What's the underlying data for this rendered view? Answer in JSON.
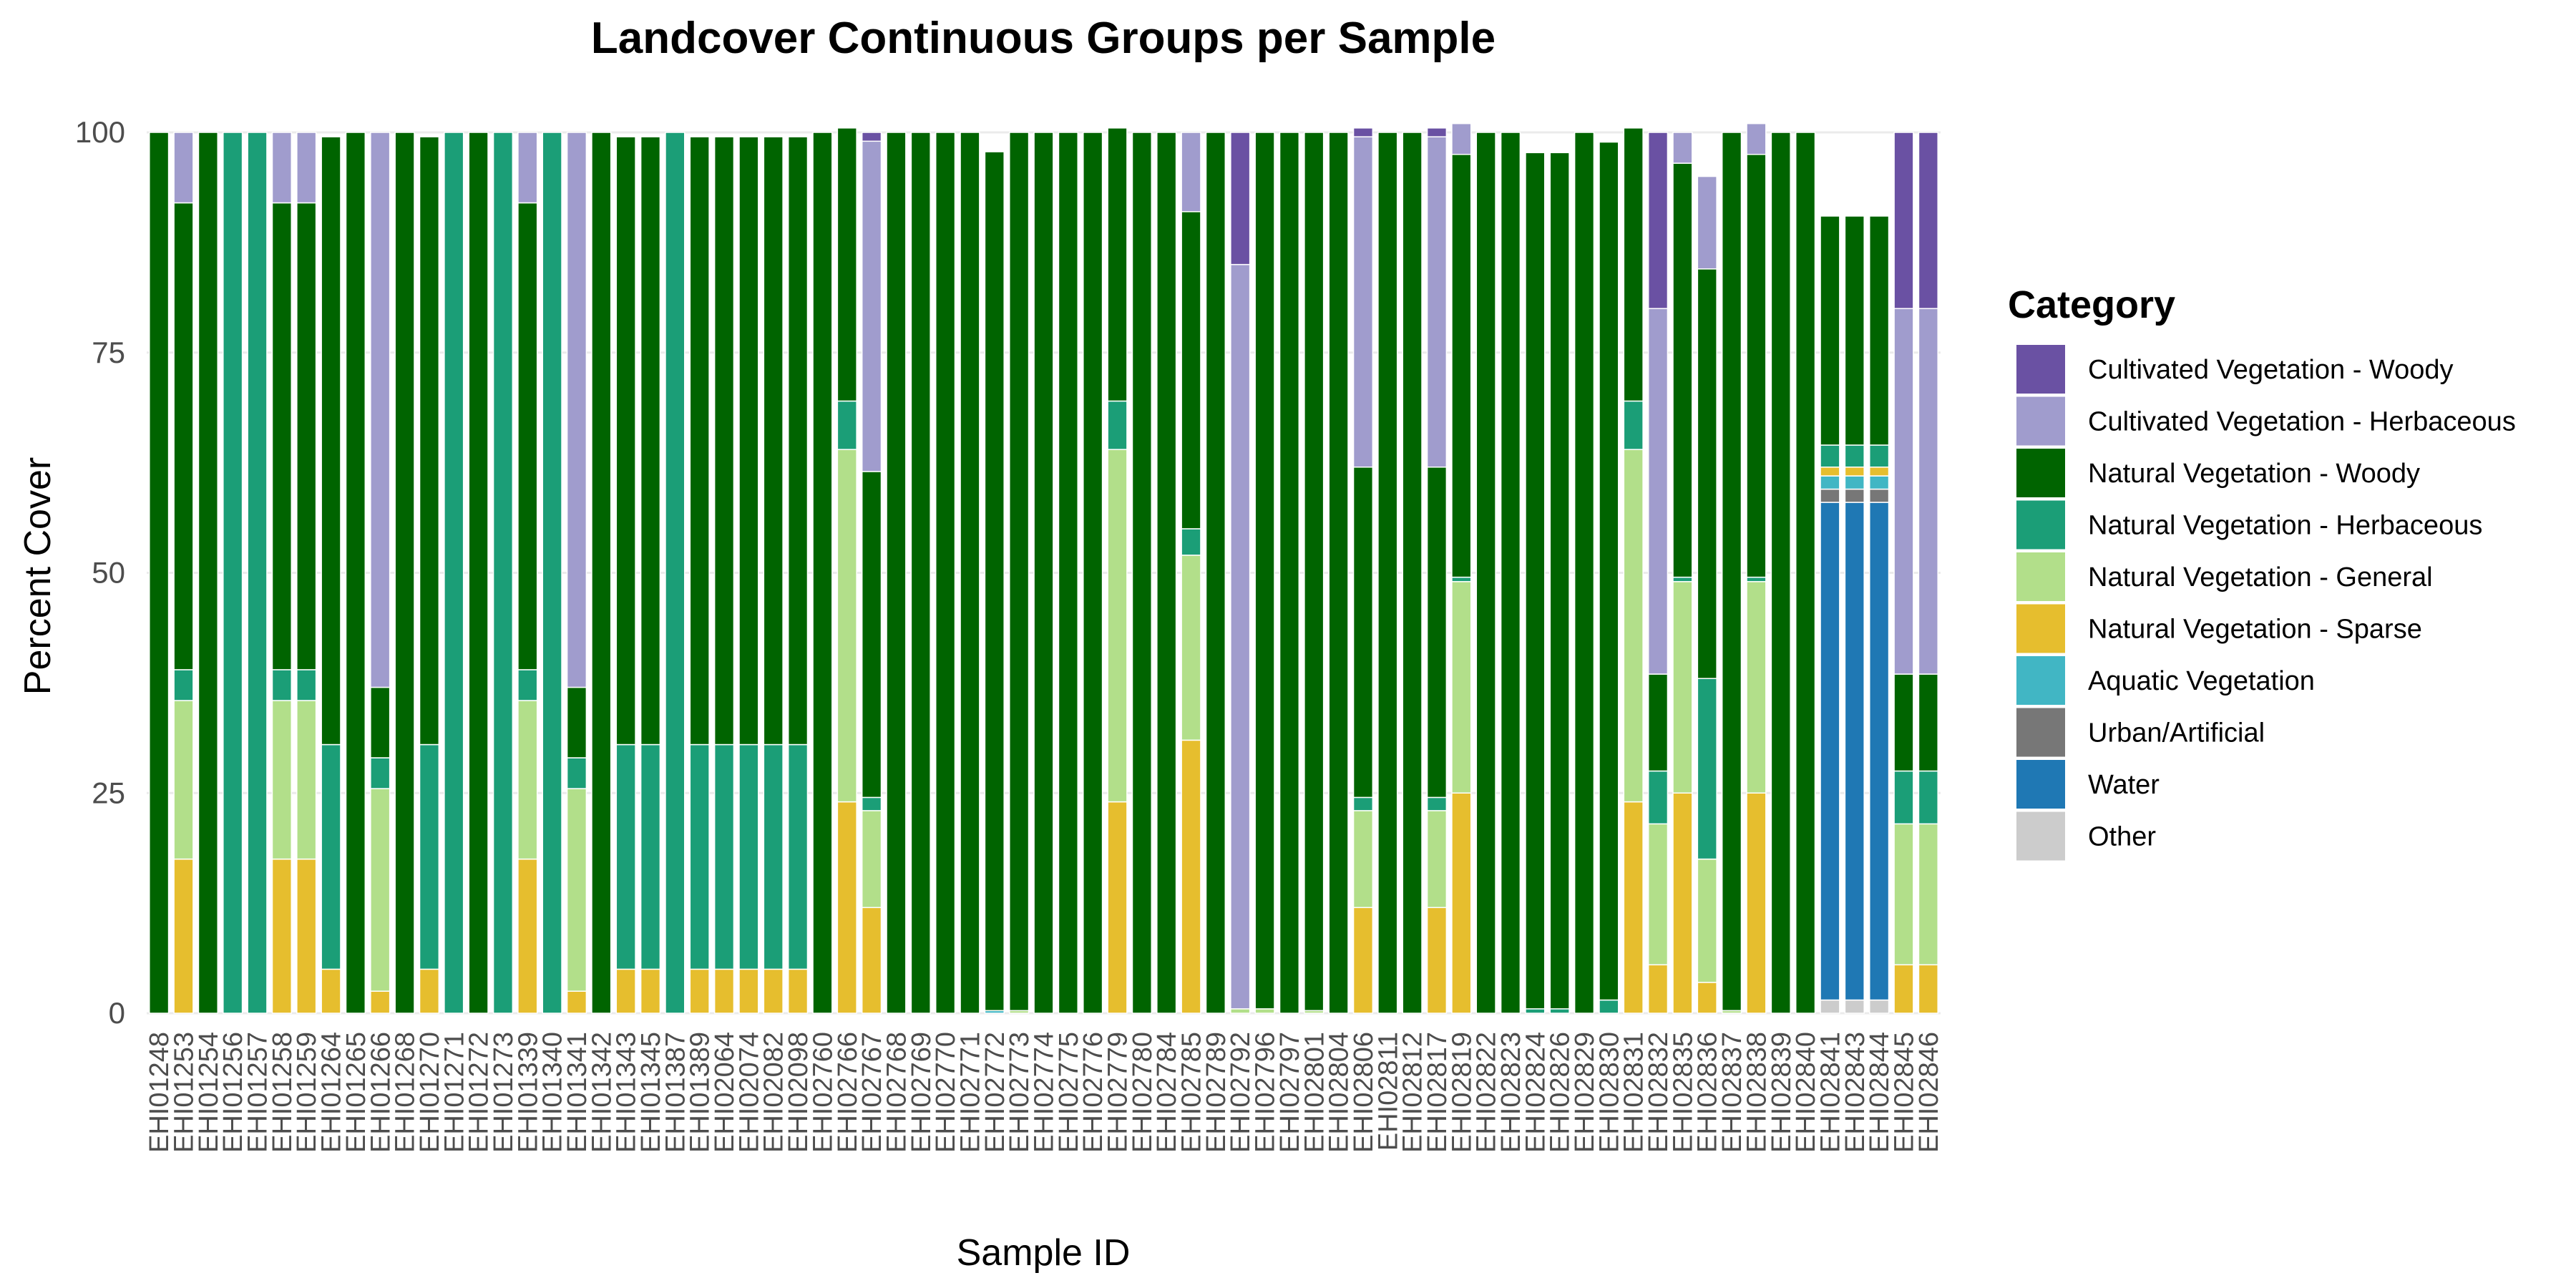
{
  "chart_data": {
    "type": "bar",
    "stacked": true,
    "title": "Landcover Continuous Groups per Sample",
    "xlabel": "Sample ID",
    "ylabel": "Percent Cover",
    "ylim": [
      0,
      100
    ],
    "yticks": [
      0,
      25,
      50,
      75,
      100
    ],
    "grid": true,
    "legend_title": "Category",
    "legend_position": "right",
    "categories": [
      "EHI01248",
      "EHI01253",
      "EHI01254",
      "EHI01256",
      "EHI01257",
      "EHI01258",
      "EHI01259",
      "EHI01264",
      "EHI01265",
      "EHI01266",
      "EHI01268",
      "EHI01270",
      "EHI01271",
      "EHI01272",
      "EHI01273",
      "EHI01339",
      "EHI01340",
      "EHI01341",
      "EHI01342",
      "EHI01343",
      "EHI01345",
      "EHI01387",
      "EHI01389",
      "EHI02064",
      "EHI02074",
      "EHI02082",
      "EHI02098",
      "EHI02760",
      "EHI02766",
      "EHI02767",
      "EHI02768",
      "EHI02769",
      "EHI02770",
      "EHI02771",
      "EHI02772",
      "EHI02773",
      "EHI02774",
      "EHI02775",
      "EHI02776",
      "EHI02779",
      "EHI02780",
      "EHI02784",
      "EHI02785",
      "EHI02789",
      "EHI02792",
      "EHI02796",
      "EHI02797",
      "EHI02801",
      "EHI02804",
      "EHI02806",
      "EHI02811",
      "EHI02812",
      "EHI02817",
      "EHI02819",
      "EHI02822",
      "EHI02823",
      "EHI02824",
      "EHI02826",
      "EHI02829",
      "EHI02830",
      "EHI02831",
      "EHI02832",
      "EHI02835",
      "EHI02836",
      "EHI02837",
      "EHI02838",
      "EHI02839",
      "EHI02840",
      "EHI02841",
      "EHI02843",
      "EHI02844",
      "EHI02845",
      "EHI02846"
    ],
    "series": [
      {
        "name": "Other",
        "color": "#cccccc",
        "values": [
          0,
          0,
          0,
          0,
          0,
          0,
          0,
          0,
          0,
          0,
          0,
          0,
          0,
          0,
          0,
          0,
          0,
          0,
          0,
          0,
          0,
          0,
          0,
          0,
          0,
          0,
          0,
          0,
          0,
          0,
          0,
          0,
          0,
          0,
          0,
          0,
          0,
          0,
          0,
          0,
          0,
          0,
          0,
          0,
          0,
          0,
          0,
          0,
          0,
          0,
          0,
          0,
          0,
          0,
          0,
          0,
          0,
          0,
          0,
          0,
          0,
          0,
          0,
          0,
          0,
          0,
          0,
          0,
          1.5,
          1.5,
          1.5,
          0,
          0
        ]
      },
      {
        "name": "Water",
        "color": "#1f78b4",
        "values": [
          0,
          0,
          0,
          0,
          0,
          0,
          0,
          0,
          0,
          0,
          0,
          0,
          0,
          0,
          0,
          0,
          0,
          0,
          0,
          0,
          0,
          0,
          0,
          0,
          0,
          0,
          0,
          0,
          0,
          0,
          0,
          0,
          0,
          0,
          0,
          0,
          0,
          0,
          0,
          0,
          0,
          0,
          0,
          0,
          0,
          0,
          0,
          0,
          0,
          0,
          0,
          0,
          0,
          0,
          0,
          0,
          0,
          0,
          0,
          0,
          0,
          0,
          0,
          0,
          0,
          0,
          0,
          0,
          56.5,
          56.5,
          56.5,
          0,
          0
        ]
      },
      {
        "name": "Urban/Artificial",
        "color": "#777777",
        "values": [
          0,
          0,
          0,
          0,
          0,
          0,
          0,
          0,
          0,
          0,
          0,
          0,
          0,
          0,
          0,
          0,
          0,
          0,
          0,
          0,
          0,
          0,
          0,
          0,
          0,
          0,
          0,
          0,
          0,
          0,
          0,
          0,
          0,
          0,
          0,
          0,
          0,
          0,
          0,
          0,
          0,
          0,
          0,
          0,
          0,
          0,
          0,
          0,
          0,
          0,
          0,
          0,
          0,
          0,
          0,
          0,
          0,
          0,
          0,
          0,
          0,
          0,
          0,
          0,
          0,
          0,
          0,
          0,
          1.5,
          1.5,
          1.5,
          0,
          0
        ]
      },
      {
        "name": "Aquatic Vegetation",
        "color": "#41b6c4",
        "values": [
          0,
          0,
          0,
          0,
          0,
          0,
          0,
          0,
          0,
          0,
          0,
          0,
          0,
          0,
          0,
          0,
          0,
          0,
          0,
          0,
          0,
          0,
          0,
          0,
          0,
          0,
          0,
          0,
          0,
          0,
          0,
          0,
          0,
          0,
          0.3,
          0,
          0,
          0,
          0,
          0,
          0,
          0,
          0,
          0,
          0,
          0,
          0,
          0,
          0,
          0,
          0,
          0,
          0,
          0,
          0,
          0,
          0,
          0,
          0,
          0,
          0,
          0,
          0,
          0,
          0,
          0,
          0,
          0,
          1.5,
          1.5,
          1.5,
          0,
          0
        ]
      },
      {
        "name": "Natural Vegetation - Sparse",
        "color": "#e6be2e",
        "values": [
          0,
          17.5,
          0,
          0,
          0,
          17.5,
          17.5,
          5,
          0,
          2.5,
          0,
          5,
          0,
          0,
          0,
          17.5,
          0,
          2.5,
          0,
          5,
          5,
          0,
          5,
          5,
          5,
          5,
          5,
          0,
          24,
          12,
          0,
          0,
          0,
          0,
          0,
          0,
          0,
          0,
          0,
          24,
          0,
          0,
          31,
          0,
          0,
          0,
          0,
          0,
          0,
          12,
          0,
          0,
          12,
          25,
          0,
          0,
          0,
          0,
          0,
          0,
          24,
          5.5,
          25,
          3.5,
          0,
          25,
          0,
          0,
          1,
          1,
          1,
          5.5,
          5.5
        ]
      },
      {
        "name": "Natural Vegetation - General",
        "color": "#b2df8a",
        "values": [
          0,
          18,
          0,
          0,
          0,
          18,
          18,
          0,
          0,
          23,
          0,
          0,
          0,
          0,
          0,
          18,
          0,
          23,
          0,
          0,
          0,
          0,
          0,
          0,
          0,
          0,
          0,
          0,
          40,
          11,
          0,
          0,
          0,
          0,
          0,
          0.3,
          0,
          0,
          0,
          40,
          0,
          0,
          21,
          0,
          0.5,
          0.5,
          0,
          0.3,
          0,
          11,
          0,
          0,
          11,
          24,
          0,
          0,
          0,
          0,
          0,
          0,
          40,
          16,
          24,
          14,
          0.3,
          24,
          0,
          0,
          0,
          0,
          0,
          16,
          16
        ]
      },
      {
        "name": "Natural Vegetation - Herbaceous",
        "color": "#1b9e77",
        "values": [
          0,
          3.5,
          0,
          100,
          100,
          3.5,
          3.5,
          25.5,
          0,
          3.5,
          0,
          25.5,
          100,
          0,
          100,
          3.5,
          100,
          3.5,
          0,
          25.5,
          25.5,
          100,
          25.5,
          25.5,
          25.5,
          25.5,
          25.5,
          0,
          5.5,
          1.5,
          0,
          0,
          0,
          0,
          0,
          0,
          0,
          0,
          0,
          5.5,
          0,
          0,
          3,
          0,
          0,
          0,
          0,
          0,
          0,
          1.5,
          0,
          0,
          1.5,
          0.5,
          0,
          0,
          0.5,
          0.5,
          0,
          1.5,
          5.5,
          6,
          0.5,
          20.5,
          0,
          0.5,
          0,
          0,
          2.5,
          2.5,
          2.5,
          6,
          6
        ]
      },
      {
        "name": "Natural Vegetation - Woody",
        "color": "#006400",
        "values": [
          100,
          53,
          100,
          0,
          0,
          53,
          53,
          69,
          100,
          8,
          100,
          69,
          0,
          100,
          0,
          53,
          0,
          8,
          100,
          69,
          69,
          0,
          69,
          69,
          69,
          69,
          69,
          100,
          31,
          37,
          100,
          100,
          100,
          100,
          97.5,
          99.7,
          100,
          100,
          100,
          31,
          100,
          100,
          36,
          100,
          0,
          99.5,
          100,
          99.7,
          100,
          37.5,
          100,
          100,
          37.5,
          48,
          100,
          100,
          97.2,
          97.2,
          100,
          97.4,
          31,
          11,
          47,
          46.5,
          99.7,
          48,
          100,
          100,
          26,
          26,
          26,
          11,
          11
        ]
      },
      {
        "name": "Cultivated Vegetation - Herbaceous",
        "color": "#a09ccd",
        "values": [
          0,
          8,
          0,
          0,
          0,
          8,
          8,
          0,
          0,
          63,
          0,
          0,
          0,
          0,
          0,
          8,
          0,
          63,
          0,
          0,
          0,
          0,
          0,
          0,
          0,
          0,
          0,
          0,
          0,
          37.5,
          0,
          0,
          0,
          0,
          0,
          0,
          0,
          0,
          0,
          0,
          0,
          0,
          9,
          0,
          84.5,
          0,
          0,
          0,
          0,
          37.5,
          0,
          0,
          37.5,
          3.5,
          0,
          0,
          0,
          0,
          0,
          0,
          0,
          41.5,
          3.5,
          10.5,
          0,
          3.5,
          0,
          0,
          0,
          0,
          0,
          41.5,
          41.5
        ]
      },
      {
        "name": "Cultivated Vegetation - Woody",
        "color": "#6a51a3",
        "values": [
          0,
          0,
          0,
          0,
          0,
          0,
          0,
          0,
          0,
          0,
          0,
          0,
          0,
          0,
          0,
          0,
          0,
          0,
          0,
          0,
          0,
          0,
          0,
          0,
          0,
          0,
          0,
          0,
          0,
          1,
          0,
          0,
          0,
          0,
          0,
          0,
          0,
          0,
          0,
          0,
          0,
          0,
          0,
          0,
          15,
          0,
          0,
          0,
          0,
          1,
          0,
          0,
          1,
          0,
          0,
          0,
          0,
          0,
          0,
          0,
          0,
          20,
          0,
          0,
          0,
          0,
          0,
          0,
          0,
          0,
          0,
          20,
          20
        ]
      }
    ]
  }
}
